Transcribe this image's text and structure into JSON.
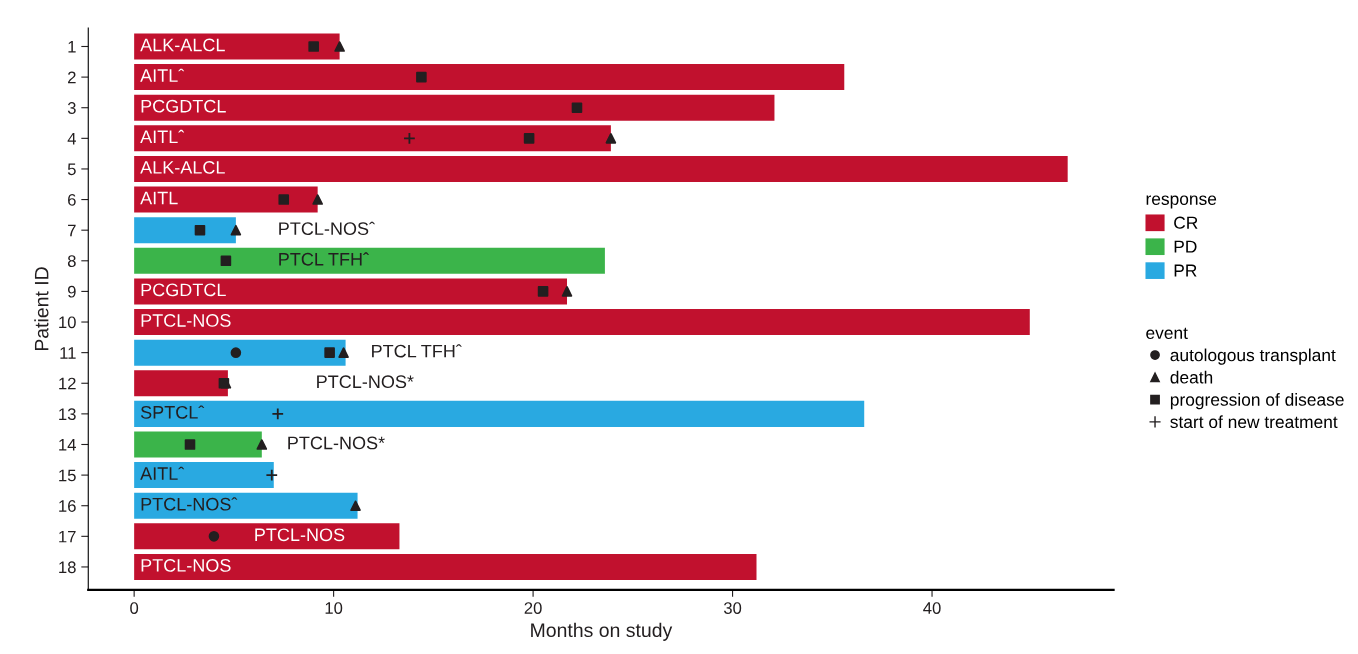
{
  "chart_data": {
    "type": "bar",
    "orientation": "horizontal",
    "categories": [
      "1",
      "2",
      "3",
      "4",
      "5",
      "6",
      "7",
      "8",
      "9",
      "10",
      "11",
      "12",
      "13",
      "14",
      "15",
      "16",
      "17",
      "18"
    ],
    "xlabel": "Months on study",
    "ylabel": "Patient ID",
    "xlim": [
      -2.3,
      49.1
    ],
    "xticks": [
      0,
      10,
      20,
      30,
      40
    ],
    "grid": false,
    "legend": "right",
    "legend_title": [
      "response",
      "event"
    ],
    "series": [
      {
        "name": "CR",
        "color": "#c1112e",
        "values": [
          10.3,
          35.6,
          32.1,
          23.9,
          46.8,
          9.2,
          null,
          null,
          21.7,
          44.9,
          null,
          4.7,
          null,
          null,
          null,
          null,
          13.3,
          31.2
        ]
      },
      {
        "name": "PD",
        "color": "#3bb44a",
        "values": [
          null,
          null,
          null,
          null,
          null,
          null,
          null,
          23.6,
          null,
          null,
          null,
          null,
          null,
          6.4,
          null,
          null,
          null,
          null
        ]
      },
      {
        "name": "PR",
        "color": "#29a9e1",
        "values": [
          null,
          null,
          null,
          null,
          null,
          null,
          5.1,
          null,
          null,
          null,
          10.6,
          null,
          36.6,
          null,
          7.0,
          11.2,
          null,
          null
        ]
      },
      {
        "name": "autologous transplant",
        "type": "scatter",
        "marker": "circle",
        "color": "#231f20",
        "x": [
          "11",
          "17"
        ],
        "values": [
          5.1,
          4.0
        ]
      },
      {
        "name": "death",
        "type": "scatter",
        "marker": "triangle",
        "color": "#231f20",
        "x": [
          "1",
          "4",
          "6",
          "7",
          "9",
          "11",
          "12",
          "14",
          "16"
        ],
        "values": [
          10.3,
          23.9,
          9.2,
          5.1,
          21.7,
          10.5,
          4.6,
          6.4,
          11.1
        ]
      },
      {
        "name": "progression of disease",
        "type": "scatter",
        "marker": "square",
        "color": "#231f20",
        "x": [
          "1",
          "2",
          "3",
          "4",
          "6",
          "7",
          "8",
          "9",
          "11",
          "12",
          "14"
        ],
        "values": [
          9.0,
          14.4,
          22.2,
          19.8,
          7.5,
          3.3,
          4.6,
          20.5,
          9.8,
          4.5,
          2.8
        ]
      },
      {
        "name": "start of new treatment",
        "type": "scatter",
        "marker": "cross",
        "color": "#231f20",
        "x": [
          "4",
          "13",
          "15"
        ],
        "values": [
          13.8,
          7.2,
          6.9
        ]
      }
    ],
    "annotations": [
      {
        "text": "ALK-ALCL",
        "x": 0.3,
        "y": "1"
      },
      {
        "text": "AITLˆ",
        "x": 0.3,
        "y": "2"
      },
      {
        "text": "PCGDTCL",
        "x": 0.3,
        "y": "3"
      },
      {
        "text": "AITLˆ",
        "x": 0.3,
        "y": "4"
      },
      {
        "text": "ALK-ALCL",
        "x": 0.3,
        "y": "5"
      },
      {
        "text": "AITL",
        "x": 0.3,
        "y": "6"
      },
      {
        "text": "PTCL-NOSˆ",
        "x": 7.2,
        "y": "7"
      },
      {
        "text": "PTCL TFHˆ",
        "x": 7.2,
        "y": "8"
      },
      {
        "text": "PCGDTCL",
        "x": 0.3,
        "y": "9"
      },
      {
        "text": "PTCL-NOS",
        "x": 0.3,
        "y": "10"
      },
      {
        "text": "PTCL TFHˆ",
        "x": 10.6,
        "y": "11"
      },
      {
        "text": "PTCL-NOS*",
        "x": 9.1,
        "y": "12"
      },
      {
        "text": "SPTCLˆ",
        "x": 0.3,
        "y": "13"
      },
      {
        "text": "PTCL-NOS*",
        "x": 6.4,
        "y": "14"
      },
      {
        "text": "AITLˆ",
        "x": 0.3,
        "y": "15"
      },
      {
        "text": "PTCL-NOSˆ",
        "x": 0.3,
        "y": "16"
      },
      {
        "text": "PTCL-NOS",
        "x": 6.0,
        "y": "17"
      },
      {
        "text": "PTCL-NOS",
        "x": 0.3,
        "y": "18"
      }
    ]
  }
}
